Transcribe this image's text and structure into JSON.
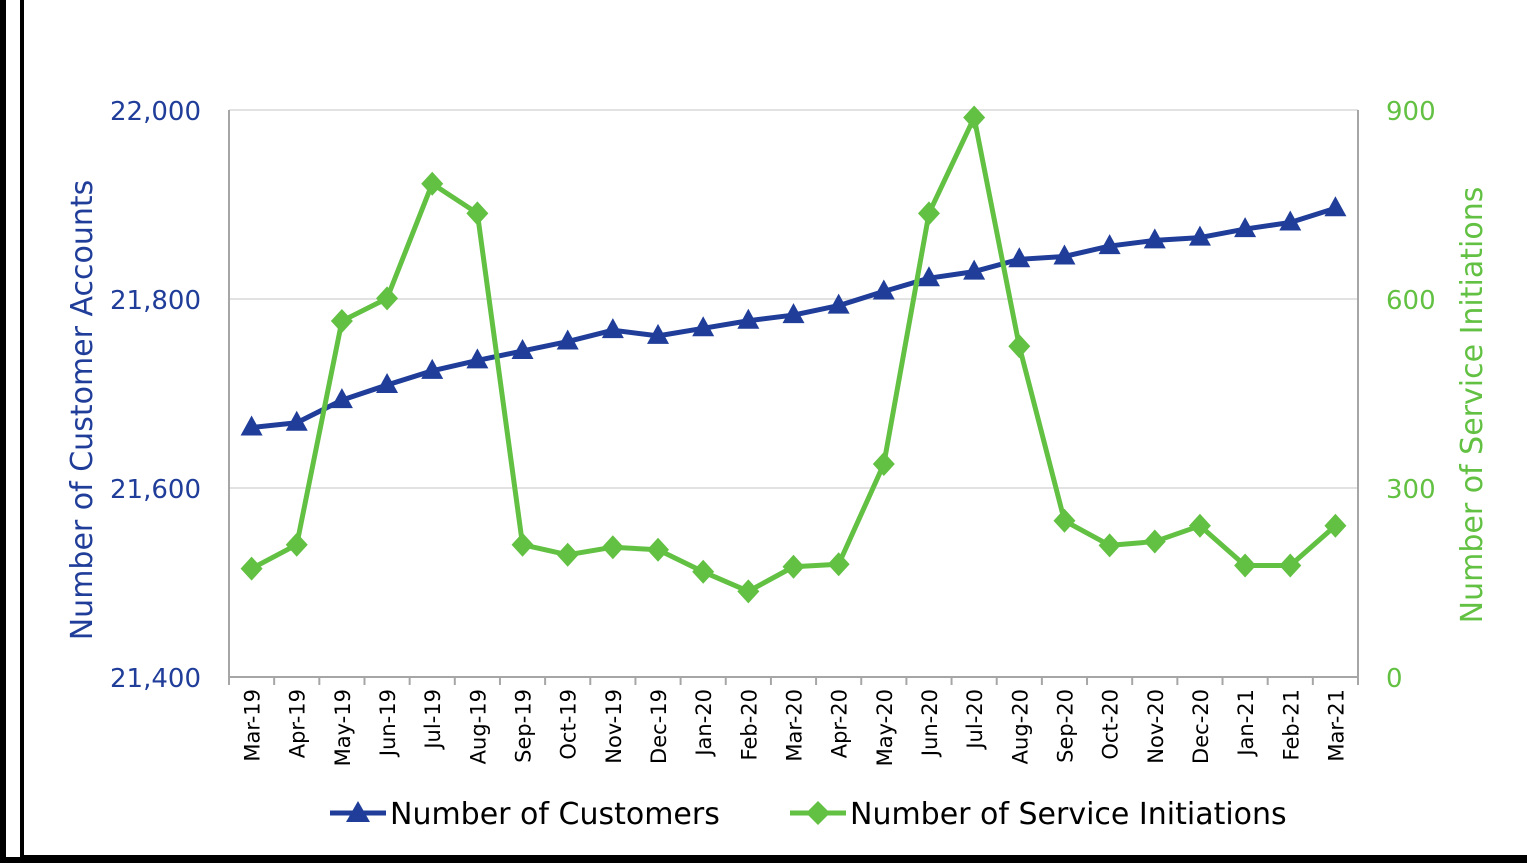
{
  "chart_data": {
    "type": "line",
    "categories": [
      "Mar-19",
      "Apr-19",
      "May-19",
      "Jun-19",
      "Jul-19",
      "Aug-19",
      "Sep-19",
      "Oct-19",
      "Nov-19",
      "Dec-19",
      "Jan-20",
      "Feb-20",
      "Mar-20",
      "Apr-20",
      "May-20",
      "Jun-20",
      "Jul-20",
      "Aug-20",
      "Sep-20",
      "Oct-20",
      "Nov-20",
      "Dec-20",
      "Jan-21",
      "Feb-21",
      "Mar-21"
    ],
    "ylabel_left": "Number of Customer Accounts",
    "ylabel_right": "Number of Service Initiations",
    "ylim_left": [
      21400,
      22000
    ],
    "ylim_right": [
      0,
      900
    ],
    "yticks_left": [
      "21,400",
      "21,600",
      "21,800",
      "22,000"
    ],
    "yticks_left_values": [
      21400,
      21600,
      21800,
      22000
    ],
    "yticks_right": [
      "0",
      "300",
      "600",
      "900"
    ],
    "yticks_right_values": [
      0,
      300,
      600,
      900
    ],
    "grid": true,
    "legend_position": "bottom",
    "series": [
      {
        "name": "Number of Customers",
        "axis": "left",
        "color": "#1f3d99",
        "marker": "triangle",
        "values": [
          21664,
          21669,
          21693,
          21709,
          21724,
          21735,
          21745,
          21755,
          21767,
          21761,
          21769,
          21777,
          21783,
          21793,
          21808,
          21822,
          21829,
          21842,
          21845,
          21856,
          21862,
          21865,
          21874,
          21881,
          21896
        ]
      },
      {
        "name": "Number of Service Initiations",
        "axis": "right",
        "color": "#62c142",
        "marker": "diamond",
        "values": [
          172,
          210,
          565,
          601,
          783,
          736,
          210,
          194,
          206,
          202,
          167,
          136,
          175,
          179,
          338,
          736,
          888,
          525,
          248,
          209,
          215,
          240,
          177,
          177,
          240
        ]
      }
    ]
  }
}
